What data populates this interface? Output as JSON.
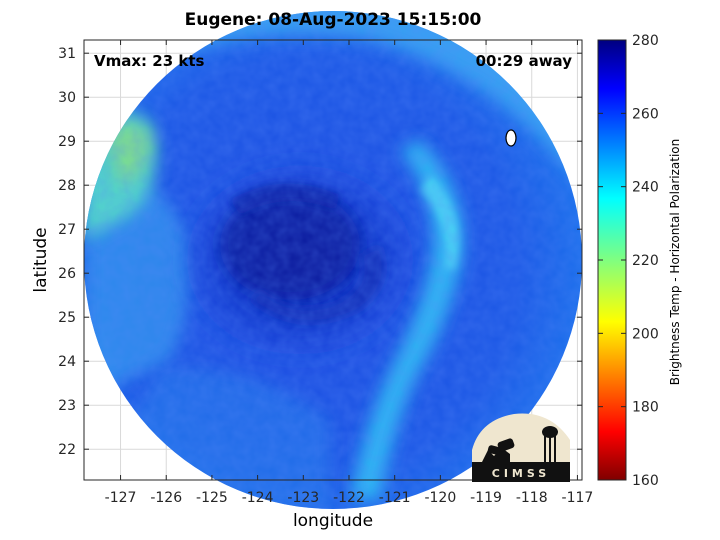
{
  "title": "Eugene: 08-Aug-2023 15:15:00",
  "annotations": {
    "vmax": "Vmax: 23 kts",
    "time_away": "00:29 away"
  },
  "logo_text": "CIMSS",
  "chart_data": {
    "type": "heatmap",
    "title": "Eugene: 08-Aug-2023 15:15:00",
    "xlabel": "longitude",
    "ylabel": "latitude",
    "xlim": [
      -127.8,
      -116.9
    ],
    "ylim": [
      21.3,
      31.3
    ],
    "xticks": [
      -127,
      -126,
      -125,
      -124,
      -123,
      -122,
      -121,
      -120,
      -119,
      -118,
      -117
    ],
    "yticks": [
      22,
      23,
      24,
      25,
      26,
      27,
      28,
      29,
      30,
      31
    ],
    "grid": true,
    "colorbar": {
      "label": "Brightness Temp - Horizontal Polarization",
      "range": [
        160,
        280
      ],
      "ticks": [
        160,
        180,
        200,
        220,
        240,
        260,
        280
      ],
      "colormap": "jet"
    },
    "swath_center": [
      -122.35,
      26.0
    ],
    "storm_center": [
      -123.1,
      26.7
    ],
    "field_description_values": {
      "storm_core_K": 268,
      "background_K": 252,
      "rainband_K": 238,
      "northwest_corner_K": 226
    }
  }
}
